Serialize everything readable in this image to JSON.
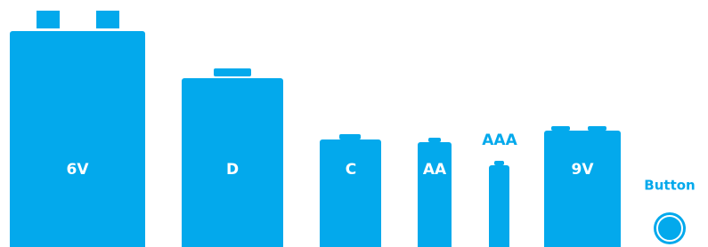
{
  "batteries": [
    {
      "label": "6V"
    },
    {
      "label": "D"
    },
    {
      "label": "C"
    },
    {
      "label": "AA"
    },
    {
      "label": "AAA"
    },
    {
      "label": "9V"
    },
    {
      "label": "Button"
    }
  ]
}
